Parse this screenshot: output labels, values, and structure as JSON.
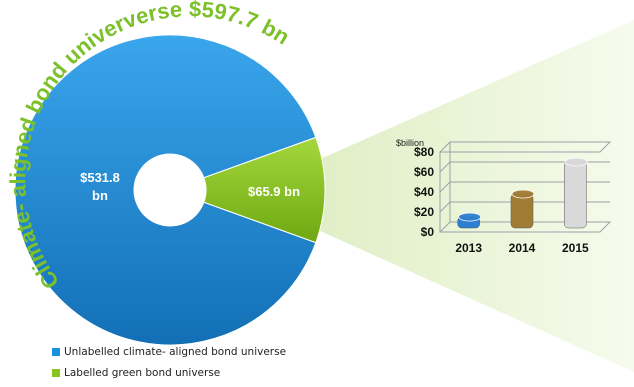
{
  "chart_data": [
    {
      "type": "pie",
      "title": "Climate- aligned bond uniververse $597.7 bn",
      "slices": [
        {
          "name": "Unlabelled climate- aligned bond universe",
          "value": 531.8,
          "label": "$531.8 bn",
          "color": "#1b8fdc"
        },
        {
          "name": "Labelled green bond universe",
          "value": 65.9,
          "label": "$65.9 bn",
          "color": "#8ac41c"
        }
      ]
    },
    {
      "type": "bar",
      "ylabel": "$billion",
      "categories": [
        "2013",
        "2014",
        "2015"
      ],
      "values": [
        11,
        34,
        66
      ],
      "ylim": [
        0,
        80
      ],
      "yticks": [
        "$0",
        "$20",
        "$40",
        "$60",
        "$80"
      ],
      "colors": [
        "#2e7fd0",
        "#a07c34",
        "#d9d9d9"
      ],
      "grid": true
    }
  ],
  "legend": [
    {
      "label": "Unlabelled climate- aligned bond universe",
      "color": "#1b8fdc"
    },
    {
      "label": "Labelled green bond universe",
      "color": "#8ac41c"
    }
  ],
  "colors": {
    "wedge_fill": "#eef6dc",
    "title_green": "#7cc02a"
  }
}
